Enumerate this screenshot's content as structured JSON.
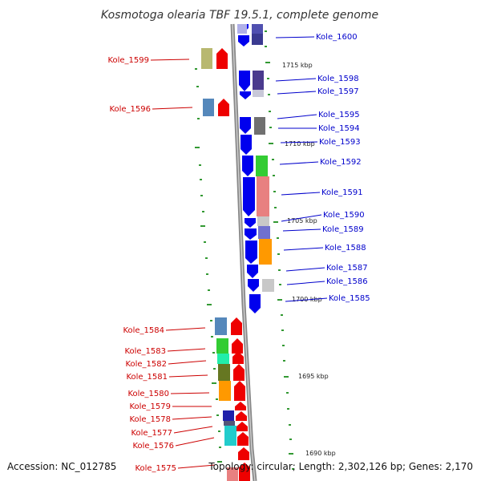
{
  "title": "Kosmotoga olearia TBF 19.5.1, complete genome",
  "accession": "Accession: NC_012785",
  "summary": "Topology: circular; Length: 2,302,126 bp; Genes: 2,170",
  "colors": {
    "plus_strand": "#0000ee",
    "minus_strand": "#ee0000",
    "plus_label": "#0000cc",
    "minus_label": "#cc0000",
    "scale_tick": "#339933",
    "backbone": "#888888"
  },
  "scale_labels": [
    {
      "kbp": 1715,
      "text": "1715 kbp"
    },
    {
      "kbp": 1710,
      "text": "1710 kbp"
    },
    {
      "kbp": 1705,
      "text": "1705 kbp"
    },
    {
      "kbp": 1700,
      "text": "1700 kbp"
    },
    {
      "kbp": 1695,
      "text": "1695 kbp"
    },
    {
      "kbp": 1690,
      "text": "1690 kbp"
    }
  ],
  "plus_genes": [
    "Kole_1600",
    "Kole_1598",
    "Kole_1597",
    "Kole_1595",
    "Kole_1594",
    "Kole_1593",
    "Kole_1592",
    "Kole_1591",
    "Kole_1590",
    "Kole_1589",
    "Kole_1588",
    "Kole_1587",
    "Kole_1586",
    "Kole_1585"
  ],
  "minus_genes": [
    "Kole_1599",
    "Kole_1596",
    "Kole_1584",
    "Kole_1583",
    "Kole_1582",
    "Kole_1581",
    "Kole_1580",
    "Kole_1579",
    "Kole_1578",
    "Kole_1577",
    "Kole_1576",
    "Kole_1575"
  ]
}
